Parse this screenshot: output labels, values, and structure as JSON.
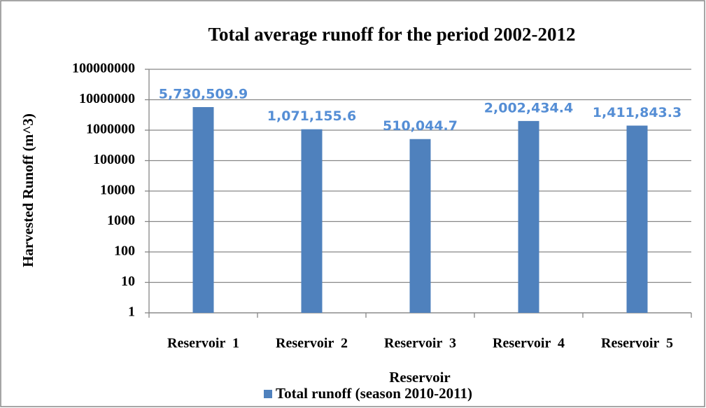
{
  "chart_data": {
    "type": "bar",
    "title": "Total average runoff for the period 2002-2012",
    "x_label": "Reservoir",
    "y_label": "Harvested Runoff (m^3)",
    "categories": [
      "Reservoir  1",
      "Reservoir  2",
      "Reservoir  3",
      "Reservoir  4",
      "Reservoir  5"
    ],
    "series": [
      {
        "name": "Total runoff (season 2010-2011)",
        "color": "#4f81bd",
        "values": [
          5730509.9,
          1071155.6,
          510044.7,
          2002434.4,
          1411843.3
        ],
        "value_labels": [
          "5,730,509.9",
          "1,071,155.6",
          "510,044.7",
          "2,002,434.4",
          "1,411,843.3"
        ],
        "label_color": "#558ed5"
      }
    ],
    "ylim": [
      1,
      100000000
    ],
    "yticks": [
      1,
      10,
      100,
      1000,
      10000,
      100000,
      1000000,
      10000000,
      100000000
    ],
    "log_scale": true,
    "grid": true,
    "legend": "bottom"
  }
}
